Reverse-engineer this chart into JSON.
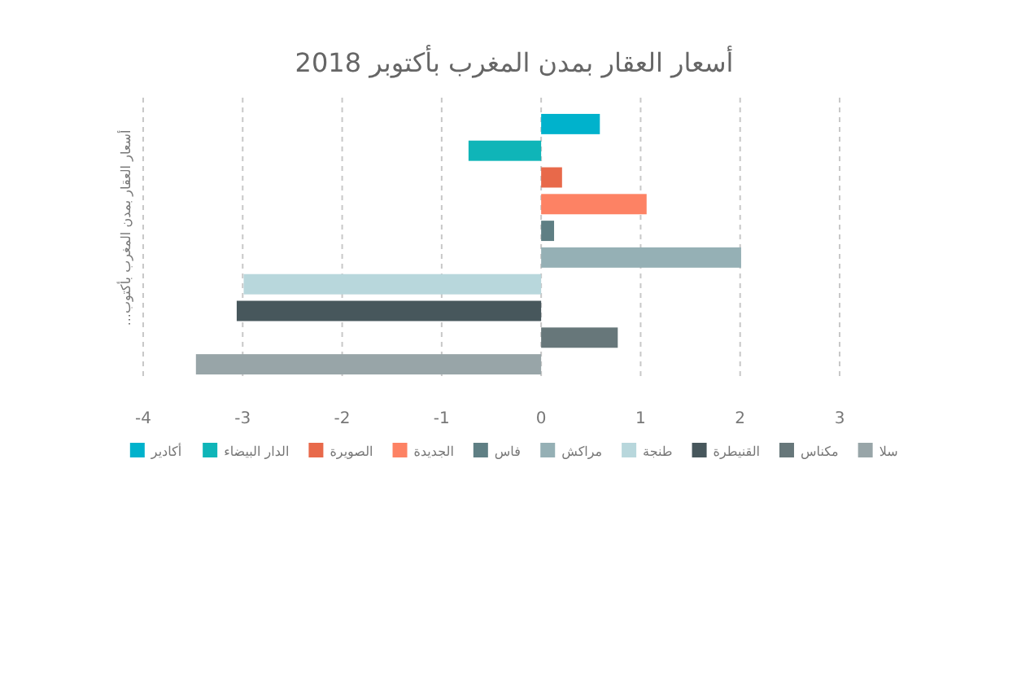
{
  "chart_data": {
    "type": "bar",
    "orientation": "horizontal",
    "title": "أسعار العقار بمدن المغرب بأكتوبر 2018",
    "ylabel": "أسعار العقار بمدن المغرب بأكتوب...",
    "categories": [
      null,
      null,
      null,
      null,
      null,
      null,
      null,
      null,
      null,
      null
    ],
    "series": [
      {
        "name": "أكادير",
        "color": "#00b2cc",
        "values": [
          0.59,
          null,
          null,
          null,
          null,
          null,
          null,
          null,
          null,
          null
        ]
      },
      {
        "name": "الدار البيضاء",
        "color": "#0fb5b8",
        "values": [
          null,
          -0.73,
          null,
          null,
          null,
          null,
          null,
          null,
          null,
          null
        ]
      },
      {
        "name": "الصويرة",
        "color": "#e8694a",
        "values": [
          null,
          null,
          0.21,
          null,
          null,
          null,
          null,
          null,
          null,
          null
        ]
      },
      {
        "name": "الجديدة",
        "color": "#fd8264",
        "values": [
          null,
          null,
          null,
          1.06,
          null,
          null,
          null,
          null,
          null,
          null
        ]
      },
      {
        "name": "فاس",
        "color": "#5f7f84",
        "values": [
          null,
          null,
          null,
          null,
          0.13,
          null,
          null,
          null,
          null,
          null
        ]
      },
      {
        "name": "مراكش",
        "color": "#95b0b5",
        "values": [
          null,
          null,
          null,
          null,
          null,
          2.01,
          null,
          null,
          null,
          null
        ]
      },
      {
        "name": "طنجة",
        "color": "#b8d7dc",
        "values": [
          null,
          null,
          null,
          null,
          null,
          null,
          -2.99,
          null,
          null,
          null
        ]
      },
      {
        "name": "القنيطرة",
        "color": "#47575c",
        "values": [
          null,
          null,
          null,
          null,
          null,
          null,
          null,
          -3.06,
          null,
          null
        ]
      },
      {
        "name": "مكناس",
        "color": "#67777a",
        "values": [
          null,
          null,
          null,
          null,
          null,
          null,
          null,
          null,
          0.77,
          null
        ]
      },
      {
        "name": "سلا",
        "color": "#98a5a8",
        "values": [
          null,
          null,
          null,
          null,
          null,
          null,
          null,
          null,
          null,
          -3.47
        ]
      }
    ],
    "xlim": [
      -4,
      3
    ],
    "xticks": [
      -4,
      -3,
      -2,
      -1,
      0,
      1,
      2,
      3
    ],
    "grid": "x",
    "legend": "bottom",
    "tick_labels": "x"
  }
}
